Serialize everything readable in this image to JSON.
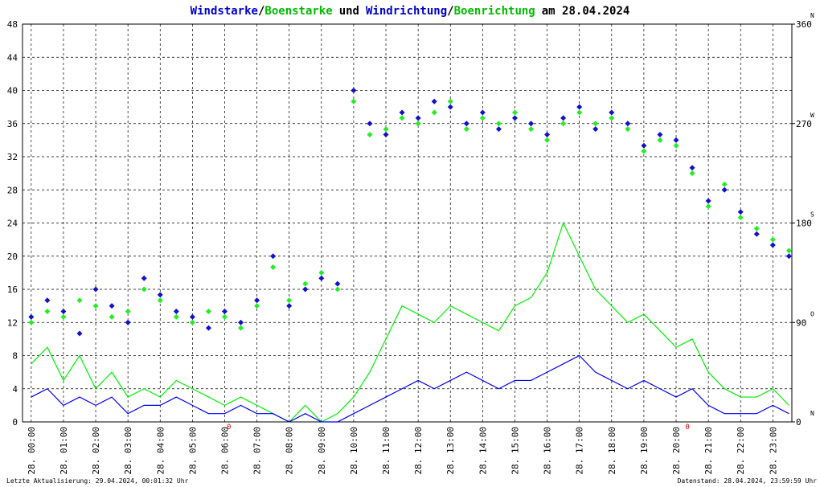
{
  "chart_data": {
    "type": "wind",
    "title_parts": [
      {
        "text": "Windstarke",
        "color": "#0000cc"
      },
      {
        "text": "/",
        "color": "#000000"
      },
      {
        "text": "Boenstarke",
        "color": "#00bb00"
      },
      {
        "text": "und",
        "color": "#000000"
      },
      {
        "text": "Windrichtung",
        "color": "#0000cc"
      },
      {
        "text": "/",
        "color": "#000000"
      },
      {
        "text": "Boenrichtung",
        "color": "#00bb00"
      },
      {
        "text": "am 28.04.2024",
        "color": "#000000"
      }
    ],
    "x": [
      0,
      0.5,
      1,
      1.5,
      2,
      2.5,
      3,
      3.5,
      4,
      4.5,
      5,
      5.5,
      6,
      6.5,
      7,
      7.5,
      8,
      8.5,
      9,
      9.5,
      10,
      10.5,
      11,
      11.5,
      12,
      12.5,
      13,
      13.5,
      14,
      14.5,
      15,
      15.5,
      16,
      16.5,
      17,
      17.5,
      18,
      18.5,
      19,
      19.5,
      20,
      20.5,
      21,
      21.5,
      22,
      22.5,
      23,
      23.5
    ],
    "series": [
      {
        "name": "Boenstarke",
        "color": "#00ee00",
        "kind": "line",
        "values": [
          7,
          9,
          5,
          8,
          4,
          6,
          3,
          4,
          3,
          5,
          4,
          3,
          2,
          3,
          2,
          1,
          0,
          2,
          0,
          1,
          3,
          6,
          10,
          14,
          13,
          12,
          14,
          13,
          12,
          11,
          14,
          15,
          18,
          24,
          20,
          16,
          14,
          12,
          13,
          11,
          9,
          10,
          6,
          4,
          3,
          3,
          4,
          2
        ]
      },
      {
        "name": "Windstarke",
        "color": "#0000ee",
        "kind": "line",
        "values": [
          3,
          4,
          2,
          3,
          2,
          3,
          1,
          2,
          2,
          3,
          2,
          1,
          1,
          2,
          1,
          1,
          0,
          1,
          0,
          0,
          1,
          2,
          3,
          4,
          5,
          4,
          5,
          6,
          5,
          4,
          5,
          5,
          6,
          7,
          8,
          6,
          5,
          4,
          5,
          4,
          3,
          4,
          2,
          1,
          1,
          1,
          2,
          1
        ]
      },
      {
        "name": "Boenrichtung",
        "color": "#22ee22",
        "kind": "scatter",
        "axis": "y2",
        "values": [
          90,
          100,
          95,
          110,
          105,
          95,
          100,
          120,
          110,
          95,
          90,
          100,
          95,
          85,
          105,
          140,
          110,
          125,
          135,
          120,
          290,
          260,
          265,
          275,
          270,
          280,
          290,
          265,
          275,
          270,
          280,
          265,
          255,
          270,
          280,
          270,
          275,
          265,
          245,
          255,
          250,
          225,
          195,
          215,
          185,
          175,
          165,
          155
        ]
      },
      {
        "name": "Windrichtung",
        "color": "#1111cc",
        "kind": "scatter",
        "axis": "y2",
        "values": [
          95,
          110,
          100,
          80,
          120,
          105,
          90,
          130,
          115,
          100,
          95,
          85,
          100,
          90,
          110,
          150,
          105,
          120,
          130,
          125,
          300,
          270,
          260,
          280,
          275,
          290,
          285,
          270,
          280,
          265,
          275,
          270,
          260,
          275,
          285,
          265,
          280,
          270,
          250,
          260,
          255,
          230,
          200,
          210,
          190,
          170,
          160,
          150
        ]
      }
    ],
    "xlim": [
      -0.27,
      23.59
    ],
    "xticks": [
      {
        "value": 0,
        "label": "28. 00:00"
      },
      {
        "value": 1,
        "label": "28. 01:00"
      },
      {
        "value": 2,
        "label": "28. 02:00"
      },
      {
        "value": 3,
        "label": "28. 03:00"
      },
      {
        "value": 4,
        "label": "28. 04:00"
      },
      {
        "value": 5,
        "label": "28. 05:00"
      },
      {
        "value": 6,
        "label": "28. 06:00"
      },
      {
        "value": 7,
        "label": "28. 07:00"
      },
      {
        "value": 8,
        "label": "28. 08:00"
      },
      {
        "value": 9,
        "label": "28. 09:00"
      },
      {
        "value": 10,
        "label": "28. 10:00"
      },
      {
        "value": 11,
        "label": "28. 11:00"
      },
      {
        "value": 12,
        "label": "28. 12:00"
      },
      {
        "value": 13,
        "label": "28. 13:00"
      },
      {
        "value": 14,
        "label": "28. 14:00"
      },
      {
        "value": 15,
        "label": "28. 15:00"
      },
      {
        "value": 16,
        "label": "28. 16:00"
      },
      {
        "value": 17,
        "label": "28. 17:00"
      },
      {
        "value": 18,
        "label": "28. 18:00"
      },
      {
        "value": 19,
        "label": "28. 19:00"
      },
      {
        "value": 20,
        "label": "28. 20:00"
      },
      {
        "value": 21,
        "label": "28. 21:00"
      },
      {
        "value": 22,
        "label": "28. 22:00"
      },
      {
        "value": 23,
        "label": "28. 23:00"
      }
    ],
    "ylim": [
      0,
      48
    ],
    "yticks": [
      0,
      4,
      8,
      12,
      16,
      20,
      24,
      28,
      32,
      36,
      40,
      44,
      48
    ],
    "y2lim": [
      0,
      360
    ],
    "y2ticks": [
      0,
      90,
      180,
      270,
      360
    ],
    "y2_compass": [
      {
        "value": 0,
        "label": "N"
      },
      {
        "value": 90,
        "label": "O"
      },
      {
        "value": 180,
        "label": "S"
      },
      {
        "value": 270,
        "label": "W"
      },
      {
        "value": 360,
        "label": "N"
      }
    ],
    "annotations": [
      {
        "x": 6.13,
        "label": "0",
        "color": "#dd0000"
      },
      {
        "x": 20.35,
        "label": "0",
        "color": "#dd0000"
      }
    ],
    "grid": true,
    "footer_left": "Letzte Aktualisierung: 29.04.2024, 00:01:32 Uhr",
    "footer_right": "Datenstand: 28.04.2024, 23:59:59 Uhr"
  }
}
